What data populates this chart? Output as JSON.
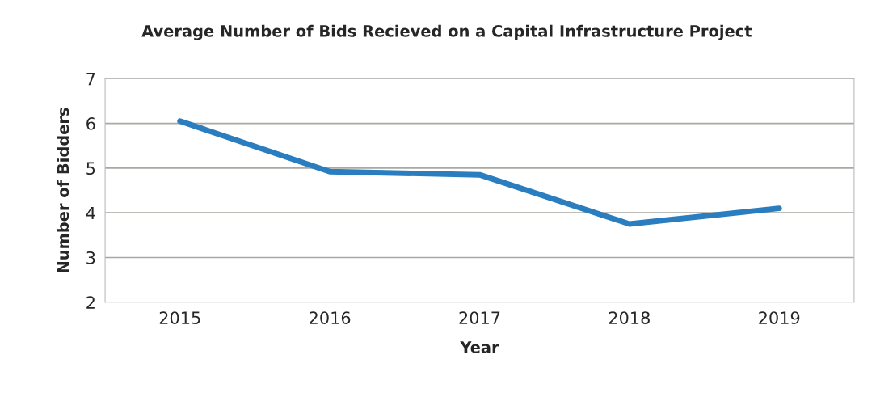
{
  "chart_data": {
    "type": "line",
    "title": "Average Number of Bids Recieved on a Capital Infrastructure Project",
    "xlabel": "Year",
    "ylabel": "Number of Bidders",
    "categories": [
      "2015",
      "2016",
      "2017",
      "2018",
      "2019"
    ],
    "series": [
      {
        "color": "#2a7ec0",
        "values": [
          6.05,
          4.92,
          4.85,
          3.75,
          4.1
        ]
      }
    ],
    "ylim": [
      2,
      7
    ],
    "yticks": [
      2,
      3,
      4,
      5,
      6,
      7
    ],
    "grid": "y",
    "marker": "none",
    "line_style": "solid"
  }
}
